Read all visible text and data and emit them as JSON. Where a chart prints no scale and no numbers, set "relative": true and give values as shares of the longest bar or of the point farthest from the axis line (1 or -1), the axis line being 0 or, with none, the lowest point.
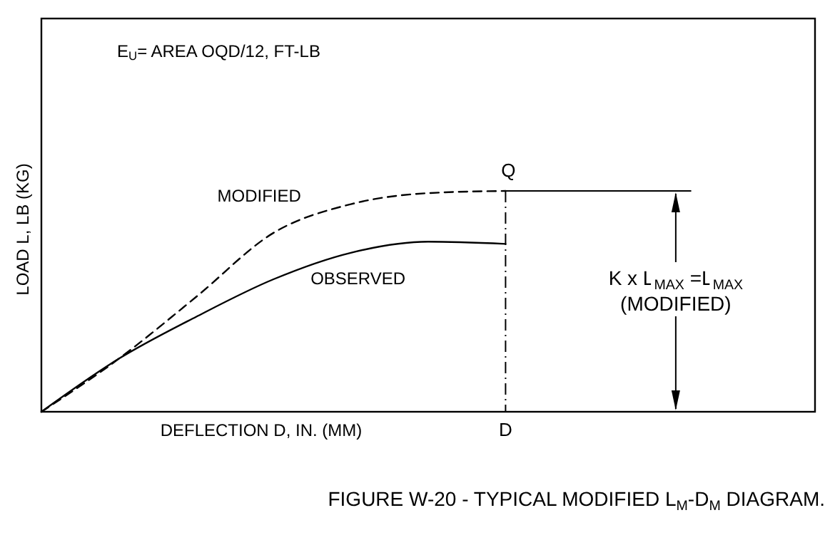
{
  "chart_data": {
    "type": "line",
    "relative": true,
    "title": "FIGURE W-20 - TYPICAL MODIFIED L$_{M}$-D$_{M}$ DIAGRAM.",
    "xlabel": "DEFLECTION D, IN. (MM)",
    "ylabel": "LOAD L,  LB (KG)",
    "categories": [
      null,
      null,
      null,
      null,
      null,
      null,
      null,
      null,
      null,
      null,
      null
    ],
    "series": [
      {
        "name": "MODIFIED",
        "color": "#000000",
        "line_style": "dashed",
        "values": [
          0,
          0.24,
          0.52,
          0.81,
          0.94,
          0.99,
          1,
          null,
          null,
          null,
          null
        ]
      },
      {
        "name": "OBSERVED",
        "color": "#000000",
        "line_style": "solid",
        "values": [
          0,
          0.24,
          0.43,
          0.6,
          0.72,
          0.77,
          0.76,
          null,
          null,
          null,
          null
        ]
      }
    ],
    "ref_lines": [
      {
        "axis": "y",
        "value": 1,
        "label": "Q",
        "color": "#000000"
      }
    ],
    "annotations": [
      "E$_{U}$= AREA OQD/12, FT-LB",
      "K x L$_{MAX}$ =L$_{MAX}$",
      "(MODIFIED)",
      "D"
    ]
  }
}
